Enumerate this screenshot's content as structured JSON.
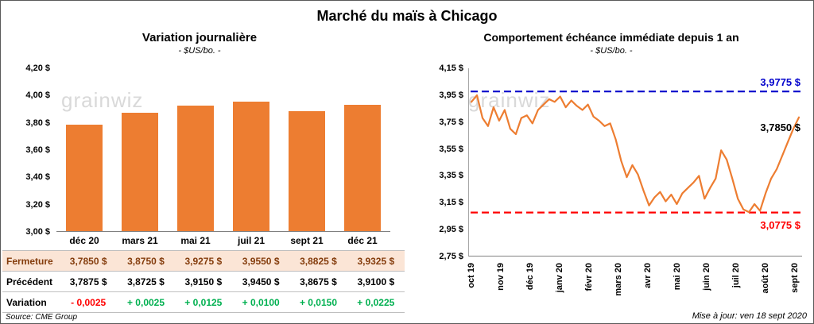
{
  "page": {
    "title": "Marché du maïs à Chicago",
    "watermark": "grainwiz",
    "source": "Source: CME Group",
    "updated": "Mise à jour: ven 18 sept 2020"
  },
  "colors": {
    "bar": "#ED7D31",
    "line": "#ED7D31",
    "resistance_blue": "#0000CC",
    "support_red": "#FF0000",
    "negative": "#FF0000",
    "positive": "#00B050",
    "fermeture_bg": "#FBE5D6",
    "fermeture_text": "#843C0C",
    "last_label_black": "#000000"
  },
  "chart_data": [
    {
      "type": "bar",
      "title": "Variation journalière",
      "subtitle": "- $US/bo. -",
      "categories": [
        "déc 20",
        "mars 21",
        "mai 21",
        "juil 21",
        "sept 21",
        "déc 21"
      ],
      "values": [
        3.785,
        3.875,
        3.9275,
        3.955,
        3.8825,
        3.9325
      ],
      "ylim": [
        3.0,
        4.2
      ],
      "ytick_labels": [
        "4,20 $",
        "4,00 $",
        "3,80 $",
        "3,60 $",
        "3,40 $",
        "3,20 $",
        "3,00 $"
      ],
      "grid": false,
      "legend": false
    },
    {
      "type": "line",
      "title": "Comportement échéance immédiate depuis 1 an",
      "subtitle": "- $US/bo. -",
      "x_labels": [
        "oct 19",
        "nov 19",
        "déc 19",
        "janv 20",
        "févr 20",
        "mars 20",
        "avr 20",
        "mai 20",
        "juin 20",
        "juil 20",
        "août 20",
        "sept 20"
      ],
      "ylim": [
        2.75,
        4.15
      ],
      "ytick_labels": [
        "4,15 $",
        "3,95 $",
        "3,75 $",
        "3,55 $",
        "3,35 $",
        "3,15 $",
        "2,95 $",
        "2,75 $"
      ],
      "values": [
        3.9,
        3.95,
        3.78,
        3.72,
        3.86,
        3.76,
        3.84,
        3.7,
        3.66,
        3.78,
        3.8,
        3.74,
        3.84,
        3.88,
        3.92,
        3.9,
        3.94,
        3.86,
        3.91,
        3.87,
        3.84,
        3.88,
        3.79,
        3.76,
        3.72,
        3.74,
        3.62,
        3.46,
        3.34,
        3.43,
        3.36,
        3.24,
        3.13,
        3.19,
        3.23,
        3.16,
        3.21,
        3.14,
        3.22,
        3.26,
        3.3,
        3.35,
        3.18,
        3.26,
        3.33,
        3.54,
        3.47,
        3.33,
        3.18,
        3.1,
        3.08,
        3.14,
        3.09,
        3.22,
        3.33,
        3.4,
        3.5,
        3.6,
        3.7,
        3.785
      ],
      "high_line": {
        "value": 3.9775,
        "label": "3,9775 $"
      },
      "low_line": {
        "value": 3.0775,
        "label": "3,0775 $"
      },
      "last_value": 3.785,
      "last_label": "3,7850 $",
      "grid": false,
      "legend": false
    }
  ],
  "table": {
    "rows": [
      {
        "label": "Fermeture",
        "signed": false,
        "values": [
          "3,7850  $",
          "3,8750  $",
          "3,9275  $",
          "3,9550  $",
          "3,8825  $",
          "3,9325  $"
        ]
      },
      {
        "label": "Précédent",
        "signed": false,
        "values": [
          "3,7875  $",
          "3,8725  $",
          "3,9150  $",
          "3,9450  $",
          "3,8675  $",
          "3,9100  $"
        ]
      },
      {
        "label": "Variation",
        "signed": true,
        "values": [
          "- 0,0025",
          "+ 0,0025",
          "+ 0,0125",
          "+ 0,0100",
          "+ 0,0150",
          "+ 0,0225"
        ]
      }
    ]
  }
}
